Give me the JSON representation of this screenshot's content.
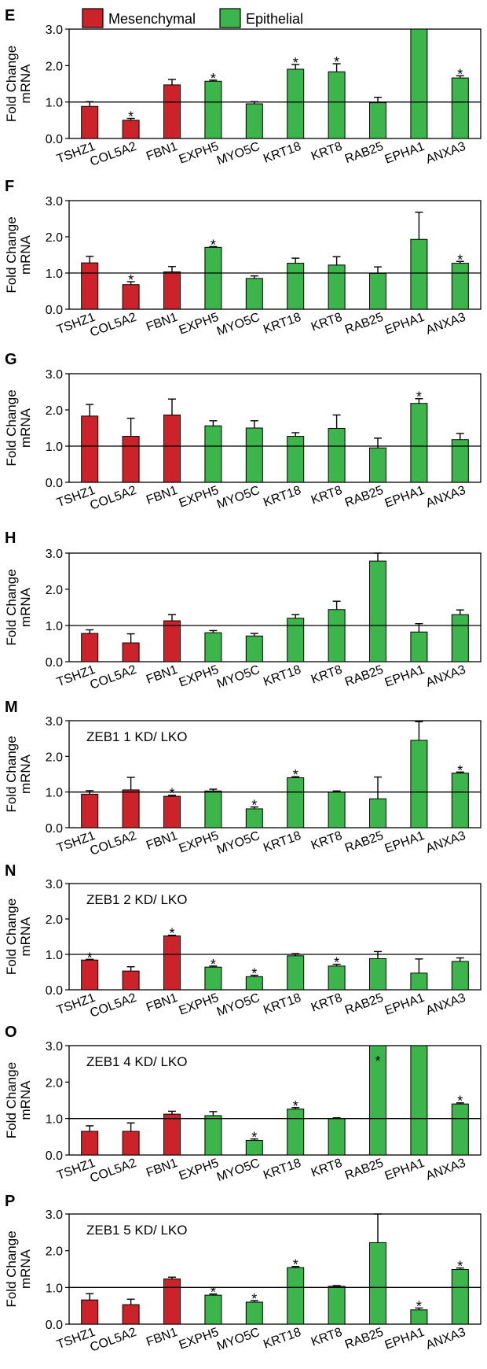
{
  "legend": {
    "items": [
      {
        "label": "Mesenchymal",
        "color": "#cc2229"
      },
      {
        "label": "Epithelial",
        "color": "#3cb54a"
      }
    ]
  },
  "colors": {
    "mesenchymal": "#cc2229",
    "epithelial": "#3cb54a",
    "axis": "#000000"
  },
  "chart_data": [
    {
      "panel": "E",
      "type": "bar",
      "annotation": "",
      "ylabel": "Fold Change mRNA",
      "ylim": [
        0,
        3.0
      ],
      "yticks": [
        "0.0",
        "1.0",
        "2.0",
        "3.0"
      ],
      "reference_line": 1.0,
      "categories": [
        "TSHZ1",
        "COL5A2",
        "FBN1",
        "EXPH5",
        "MYO5C",
        "KRT18",
        "KRT8",
        "RAB25",
        "EPHA1",
        "ANXA3"
      ],
      "groups": [
        "mesenchymal",
        "mesenchymal",
        "mesenchymal",
        "epithelial",
        "epithelial",
        "epithelial",
        "epithelial",
        "epithelial",
        "epithelial",
        "epithelial"
      ],
      "values": [
        0.88,
        0.5,
        1.47,
        1.57,
        0.95,
        1.9,
        1.83,
        0.98,
        3.0,
        1.66
      ],
      "errors": [
        0.13,
        0.05,
        0.15,
        0.03,
        0.06,
        0.13,
        0.22,
        0.15,
        0.0,
        0.06
      ],
      "significant": [
        false,
        true,
        false,
        true,
        false,
        true,
        true,
        false,
        false,
        true
      ]
    },
    {
      "panel": "F",
      "type": "bar",
      "annotation": "",
      "ylabel": "Fold Change mRNA",
      "ylim": [
        0,
        3.0
      ],
      "yticks": [
        "0.0",
        "1.0",
        "2.0",
        "3.0"
      ],
      "reference_line": 1.0,
      "categories": [
        "TSHZ1",
        "COL5A2",
        "FBN1",
        "EXPH5",
        "MYO5C",
        "KRT18",
        "KRT8",
        "RAB25",
        "EPHA1",
        "ANXA3"
      ],
      "groups": [
        "mesenchymal",
        "mesenchymal",
        "mesenchymal",
        "epithelial",
        "epithelial",
        "epithelial",
        "epithelial",
        "epithelial",
        "epithelial",
        "epithelial"
      ],
      "values": [
        1.28,
        0.68,
        1.03,
        1.71,
        0.85,
        1.27,
        1.22,
        0.99,
        1.93,
        1.27
      ],
      "errors": [
        0.18,
        0.08,
        0.15,
        0.02,
        0.07,
        0.14,
        0.23,
        0.18,
        0.75,
        0.05
      ],
      "significant": [
        false,
        true,
        false,
        true,
        false,
        false,
        false,
        false,
        false,
        true
      ]
    },
    {
      "panel": "G",
      "type": "bar",
      "annotation": "",
      "ylabel": "Fold Change mRNA",
      "ylim": [
        0,
        3.0
      ],
      "yticks": [
        "0.0",
        "1.0",
        "2.0",
        "3.0"
      ],
      "reference_line": 1.0,
      "categories": [
        "TSHZ1",
        "COL5A2",
        "FBN1",
        "EXPH5",
        "MYO5C",
        "KRT18",
        "KRT8",
        "RAB25",
        "EPHA1",
        "ANXA3"
      ],
      "groups": [
        "mesenchymal",
        "mesenchymal",
        "mesenchymal",
        "epithelial",
        "epithelial",
        "epithelial",
        "epithelial",
        "epithelial",
        "epithelial",
        "epithelial"
      ],
      "values": [
        1.83,
        1.27,
        1.86,
        1.56,
        1.5,
        1.27,
        1.49,
        0.95,
        2.18,
        1.18
      ],
      "errors": [
        0.32,
        0.5,
        0.44,
        0.14,
        0.2,
        0.1,
        0.37,
        0.27,
        0.13,
        0.17
      ],
      "significant": [
        false,
        false,
        false,
        false,
        false,
        false,
        false,
        false,
        true,
        false
      ]
    },
    {
      "panel": "H",
      "type": "bar",
      "annotation": "",
      "ylabel": "Fold Change mRNA",
      "ylim": [
        0,
        3.0
      ],
      "yticks": [
        "0.0",
        "1.0",
        "2.0",
        "3.0"
      ],
      "reference_line": 1.0,
      "categories": [
        "TSHZ1",
        "COL5A2",
        "FBN1",
        "EXPH5",
        "MYO5C",
        "KRT18",
        "KRT8",
        "RAB25",
        "EPHA1",
        "ANXA3"
      ],
      "groups": [
        "mesenchymal",
        "mesenchymal",
        "mesenchymal",
        "epithelial",
        "epithelial",
        "epithelial",
        "epithelial",
        "epithelial",
        "epithelial",
        "epithelial"
      ],
      "values": [
        0.78,
        0.52,
        1.13,
        0.8,
        0.71,
        1.2,
        1.44,
        2.78,
        0.82,
        1.3
      ],
      "errors": [
        0.1,
        0.25,
        0.17,
        0.06,
        0.07,
        0.1,
        0.23,
        0.22,
        0.23,
        0.13
      ],
      "significant": [
        false,
        false,
        false,
        false,
        false,
        false,
        false,
        false,
        false,
        false
      ]
    },
    {
      "panel": "M",
      "type": "bar",
      "annotation": "ZEB1 1 KD/ LKO",
      "ylabel": "Fold Change mRNA",
      "ylim": [
        0,
        3.0
      ],
      "yticks": [
        "0.0",
        "1.0",
        "2.0",
        "3.0"
      ],
      "reference_line": 1.0,
      "categories": [
        "TSHZ1",
        "COL5A2",
        "FBN1",
        "EXPH5",
        "MYO5C",
        "KRT18",
        "KRT8",
        "RAB25",
        "EPHA1",
        "ANXA3"
      ],
      "groups": [
        "mesenchymal",
        "mesenchymal",
        "mesenchymal",
        "epithelial",
        "epithelial",
        "epithelial",
        "epithelial",
        "epithelial",
        "epithelial",
        "epithelial"
      ],
      "values": [
        0.94,
        1.06,
        0.88,
        1.03,
        0.53,
        1.4,
        1.0,
        0.81,
        2.45,
        1.53
      ],
      "errors": [
        0.1,
        0.35,
        0.03,
        0.05,
        0.05,
        0.03,
        0.03,
        0.61,
        0.52,
        0.03
      ],
      "significant": [
        false,
        false,
        true,
        false,
        true,
        true,
        false,
        false,
        false,
        true
      ]
    },
    {
      "panel": "N",
      "type": "bar",
      "annotation": "ZEB1 2 KD/ LKO",
      "ylabel": "Fold Change mRNA",
      "ylim": [
        0,
        3.0
      ],
      "yticks": [
        "0.0",
        "1.0",
        "2.0",
        "3.0"
      ],
      "reference_line": 1.0,
      "categories": [
        "TSHZ1",
        "COL5A2",
        "FBN1",
        "EXPH5",
        "MYO5C",
        "KRT18",
        "KRT8",
        "RAB25",
        "EPHA1",
        "ANXA3"
      ],
      "groups": [
        "mesenchymal",
        "mesenchymal",
        "mesenchymal",
        "epithelial",
        "epithelial",
        "epithelial",
        "epithelial",
        "epithelial",
        "epithelial",
        "epithelial"
      ],
      "values": [
        0.84,
        0.53,
        1.52,
        0.64,
        0.37,
        0.96,
        0.67,
        0.88,
        0.47,
        0.8
      ],
      "errors": [
        0.02,
        0.12,
        0.02,
        0.03,
        0.04,
        0.06,
        0.05,
        0.2,
        0.4,
        0.1
      ],
      "significant": [
        true,
        false,
        true,
        true,
        true,
        false,
        true,
        false,
        false,
        false
      ]
    },
    {
      "panel": "O",
      "type": "bar",
      "annotation": "ZEB1 4 KD/ LKO",
      "ylabel": "Fold Change mRNA",
      "ylim": [
        0,
        3.0
      ],
      "yticks": [
        "0.0",
        "1.0",
        "2.0",
        "3.0"
      ],
      "reference_line": 1.0,
      "categories": [
        "TSHZ1",
        "COL5A2",
        "FBN1",
        "EXPH5",
        "MYO5C",
        "KRT18",
        "KRT8",
        "RAB25",
        "EPHA1",
        "ANXA3"
      ],
      "groups": [
        "mesenchymal",
        "mesenchymal",
        "mesenchymal",
        "epithelial",
        "epithelial",
        "epithelial",
        "epithelial",
        "epithelial",
        "epithelial",
        "epithelial"
      ],
      "values": [
        0.65,
        0.65,
        1.12,
        1.08,
        0.4,
        1.26,
        1.0,
        3.0,
        3.0,
        1.4
      ],
      "errors": [
        0.15,
        0.23,
        0.08,
        0.11,
        0.04,
        0.04,
        0.02,
        0.0,
        0.0,
        0.03
      ],
      "significant": [
        false,
        false,
        false,
        false,
        true,
        true,
        false,
        true,
        false,
        true
      ]
    },
    {
      "panel": "P",
      "type": "bar",
      "annotation": "ZEB1 5 KD/ LKO",
      "ylabel": "Fold Change mRNA",
      "ylim": [
        0,
        3.0
      ],
      "yticks": [
        "0.0",
        "1.0",
        "2.0",
        "3.0"
      ],
      "reference_line": 1.0,
      "categories": [
        "TSHZ1",
        "COL5A2",
        "FBN1",
        "EXPH5",
        "MYO5C",
        "KRT18",
        "KRT8",
        "RAB25",
        "EPHA1",
        "ANXA3"
      ],
      "groups": [
        "mesenchymal",
        "mesenchymal",
        "mesenchymal",
        "epithelial",
        "epithelial",
        "epithelial",
        "epithelial",
        "epithelial",
        "epithelial",
        "epithelial"
      ],
      "values": [
        0.66,
        0.53,
        1.23,
        0.79,
        0.6,
        1.54,
        1.03,
        2.22,
        0.39,
        1.49
      ],
      "errors": [
        0.17,
        0.15,
        0.05,
        0.03,
        0.04,
        0.03,
        0.02,
        0.78,
        0.05,
        0.04
      ],
      "significant": [
        false,
        false,
        false,
        true,
        true,
        true,
        false,
        false,
        true,
        true
      ]
    }
  ]
}
